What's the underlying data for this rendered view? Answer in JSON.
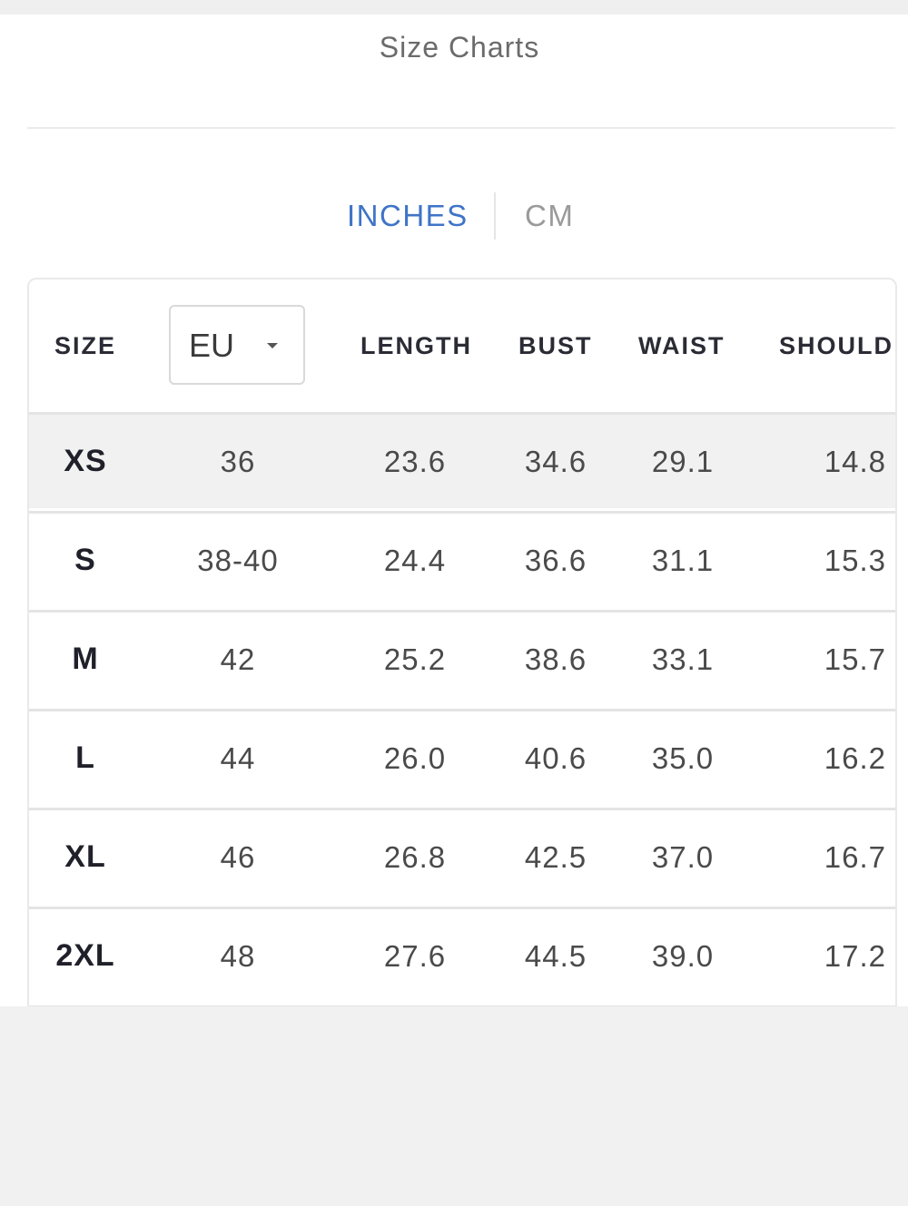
{
  "header": {
    "title": "Size Charts"
  },
  "units": {
    "options": [
      "INCHES",
      "CM"
    ],
    "selected": "INCHES"
  },
  "table": {
    "columns": {
      "size": "SIZE",
      "region_selected": "EU",
      "length": "LENGTH",
      "bust": "BUST",
      "waist": "WAIST",
      "shoulder": "SHOULD"
    },
    "rows": [
      {
        "size": "XS",
        "eu": "36",
        "length": "23.6",
        "bust": "34.6",
        "waist": "29.1",
        "shoulder": "14.8"
      },
      {
        "size": "S",
        "eu": "38-40",
        "length": "24.4",
        "bust": "36.6",
        "waist": "31.1",
        "shoulder": "15.3"
      },
      {
        "size": "M",
        "eu": "42",
        "length": "25.2",
        "bust": "38.6",
        "waist": "33.1",
        "shoulder": "15.7"
      },
      {
        "size": "L",
        "eu": "44",
        "length": "26.0",
        "bust": "40.6",
        "waist": "35.0",
        "shoulder": "16.2"
      },
      {
        "size": "XL",
        "eu": "46",
        "length": "26.8",
        "bust": "42.5",
        "waist": "37.0",
        "shoulder": "16.7"
      },
      {
        "size": "2XL",
        "eu": "48",
        "length": "27.6",
        "bust": "44.5",
        "waist": "39.0",
        "shoulder": "17.2"
      }
    ]
  },
  "colors": {
    "accent": "#3f74c7",
    "inactive": "#9a9a9a",
    "row_highlight": "#f1f1f1"
  }
}
